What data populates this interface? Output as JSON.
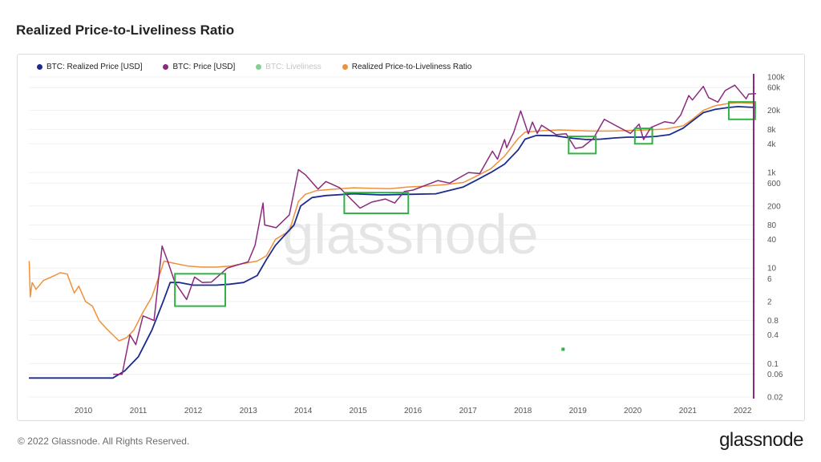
{
  "page": {
    "title": "Realized Price-to-Liveliness Ratio",
    "footer": "© 2022 Glassnode. All Rights Reserved.",
    "brand": "glassnode",
    "watermark": "glassnode"
  },
  "chart_data": {
    "type": "line",
    "title": "Realized Price-to-Liveliness Ratio",
    "xlabel": "",
    "ylabel": "",
    "y_scale": "log",
    "ylim": [
      0.02,
      100000
    ],
    "xlim": [
      "2009-01-03",
      "2022-03-31"
    ],
    "x_ticks": [
      "2010",
      "2011",
      "2012",
      "2013",
      "2014",
      "2015",
      "2016",
      "2017",
      "2018",
      "2019",
      "2020",
      "2021",
      "2022"
    ],
    "y_ticks": [
      "100k",
      "60k",
      "20k",
      "8k",
      "4k",
      "1k",
      "600",
      "200",
      "80",
      "40",
      "10",
      "6",
      "2",
      "0.8",
      "0.4",
      "0.1",
      "0.06",
      "0.02"
    ],
    "legend_position": "top-left",
    "grid": true,
    "series": [
      {
        "name": "BTC: Realized Price [USD]",
        "color": "#1c2b8e",
        "x": [
          "2009-01-03",
          "2010-07-15",
          "2010-10-01",
          "2011-01-01",
          "2011-04-01",
          "2011-06-15",
          "2011-08-01",
          "2011-10-01",
          "2012-01-01",
          "2012-06-01",
          "2012-09-01",
          "2012-12-01",
          "2013-03-01",
          "2013-05-01",
          "2013-07-01",
          "2013-11-01",
          "2013-12-15",
          "2014-03-01",
          "2014-06-01",
          "2014-12-01",
          "2015-06-01",
          "2015-12-01",
          "2016-06-01",
          "2016-12-01",
          "2017-03-01",
          "2017-06-01",
          "2017-09-01",
          "2017-12-01",
          "2018-01-15",
          "2018-04-01",
          "2018-08-01",
          "2018-12-01",
          "2019-03-01",
          "2019-06-01",
          "2019-09-01",
          "2019-12-01",
          "2020-03-01",
          "2020-06-01",
          "2020-09-01",
          "2020-12-01",
          "2021-02-01",
          "2021-04-15",
          "2021-07-01",
          "2021-10-01",
          "2021-12-01",
          "2022-02-01",
          "2022-03-31"
        ],
        "values": [
          0.05,
          0.05,
          0.07,
          0.14,
          0.5,
          2.0,
          5.0,
          5.0,
          4.4,
          4.4,
          4.6,
          5.0,
          7.0,
          15.0,
          30.0,
          80.0,
          200,
          300,
          330,
          360,
          340,
          350,
          360,
          500,
          700,
          1000,
          1500,
          3000,
          5000,
          6000,
          5900,
          5200,
          4900,
          5000,
          5300,
          5500,
          5500,
          5700,
          6200,
          8500,
          12000,
          18000,
          21000,
          23000,
          24000,
          23500,
          23000
        ]
      },
      {
        "name": "BTC: Price [USD]",
        "color": "#8b2a7e",
        "x": [
          "2010-07-18",
          "2010-09-15",
          "2010-11-06",
          "2010-12-15",
          "2011-02-01",
          "2011-04-15",
          "2011-06-08",
          "2011-07-15",
          "2011-09-01",
          "2011-11-18",
          "2012-01-10",
          "2012-03-01",
          "2012-05-01",
          "2012-08-15",
          "2012-10-15",
          "2012-12-31",
          "2013-02-15",
          "2013-04-09",
          "2013-04-20",
          "2013-07-05",
          "2013-10-01",
          "2013-11-30",
          "2014-01-15",
          "2014-04-10",
          "2014-06-01",
          "2014-09-01",
          "2015-01-14",
          "2015-04-01",
          "2015-07-01",
          "2015-09-01",
          "2015-11-04",
          "2016-01-01",
          "2016-06-15",
          "2016-09-01",
          "2017-01-04",
          "2017-03-20",
          "2017-06-12",
          "2017-07-16",
          "2017-09-01",
          "2017-09-15",
          "2017-11-01",
          "2017-12-17",
          "2018-02-06",
          "2018-03-05",
          "2018-04-06",
          "2018-05-05",
          "2018-08-10",
          "2018-10-15",
          "2018-12-15",
          "2019-02-01",
          "2019-04-15",
          "2019-06-26",
          "2019-09-01",
          "2019-12-17",
          "2020-02-12",
          "2020-03-13",
          "2020-05-01",
          "2020-08-01",
          "2020-10-01",
          "2020-11-15",
          "2021-01-08",
          "2021-02-01",
          "2021-04-14",
          "2021-05-20",
          "2021-07-20",
          "2021-09-07",
          "2021-11-10",
          "2022-01-24",
          "2022-02-10",
          "2022-03-31"
        ],
        "values": [
          0.06,
          0.06,
          0.4,
          0.25,
          1.0,
          0.8,
          29.0,
          14.0,
          5.0,
          2.2,
          6.5,
          5.0,
          5.1,
          10.0,
          11.5,
          13.5,
          30.0,
          230,
          80,
          70,
          130,
          1150,
          900,
          450,
          650,
          480,
          180,
          240,
          280,
          230,
          400,
          430,
          680,
          600,
          1000,
          950,
          2800,
          1900,
          4900,
          3300,
          7000,
          19500,
          6500,
          11400,
          6600,
          9800,
          6200,
          6500,
          3200,
          3400,
          5200,
          13000,
          10000,
          6600,
          10300,
          4900,
          8800,
          11600,
          10700,
          16000,
          41000,
          33000,
          63500,
          37000,
          29800,
          52000,
          67500,
          35000,
          44000,
          45000
        ]
      },
      {
        "name": "BTC: Liveliness",
        "color": "#2fb344",
        "x": [
          "2018-09-25"
        ],
        "values": [
          0.2
        ]
      },
      {
        "name": "Realized Price-to-Liveliness Ratio",
        "color": "#f0913a",
        "x": [
          "2009-01-05",
          "2009-01-12",
          "2009-01-25",
          "2009-02-20",
          "2009-04-10",
          "2009-06-01",
          "2009-08-01",
          "2009-09-15",
          "2009-11-01",
          "2009-12-01",
          "2010-01-15",
          "2010-03-01",
          "2010-04-15",
          "2010-06-01",
          "2010-07-15",
          "2010-08-25",
          "2010-10-15",
          "2010-12-01",
          "2011-02-01",
          "2011-04-01",
          "2011-06-01",
          "2011-06-20",
          "2011-09-01",
          "2011-12-01",
          "2012-03-01",
          "2012-06-01",
          "2012-09-01",
          "2012-12-01",
          "2013-03-01",
          "2013-05-01",
          "2013-07-01",
          "2013-10-01",
          "2013-12-01",
          "2014-01-15",
          "2014-04-01",
          "2014-08-01",
          "2014-12-01",
          "2015-04-01",
          "2015-08-01",
          "2015-12-01",
          "2016-04-01",
          "2016-08-01",
          "2016-12-01",
          "2017-03-01",
          "2017-06-01",
          "2017-09-01",
          "2017-12-01",
          "2018-01-15",
          "2018-05-01",
          "2018-09-01",
          "2018-12-15",
          "2019-04-01",
          "2019-08-01",
          "2019-12-01",
          "2020-04-01",
          "2020-08-01",
          "2020-12-01",
          "2021-02-01",
          "2021-04-15",
          "2021-07-01",
          "2021-10-01",
          "2021-12-01",
          "2022-02-01",
          "2022-03-31"
        ],
        "values": [
          14.0,
          2.5,
          5.0,
          3.6,
          5.5,
          6.5,
          8.0,
          7.5,
          3.0,
          4.2,
          2.0,
          1.6,
          0.8,
          0.55,
          0.4,
          0.3,
          0.35,
          0.5,
          1.2,
          2.5,
          9.0,
          14.0,
          12.5,
          11.0,
          10.5,
          10.5,
          11.0,
          12.5,
          14.0,
          18.0,
          40.0,
          60.0,
          250,
          350,
          420,
          450,
          480,
          470,
          460,
          500,
          520,
          560,
          620,
          850,
          1200,
          2200,
          5200,
          7000,
          7500,
          7800,
          7600,
          7400,
          7400,
          7600,
          7800,
          8100,
          9500,
          13000,
          20000,
          25000,
          28000,
          29000,
          28500,
          28000
        ]
      }
    ],
    "annotations": [
      {
        "type": "box",
        "color": "#2fb344",
        "x": [
          "2011-09-01",
          "2012-08-01"
        ],
        "y": [
          1.6,
          7.6
        ]
      },
      {
        "type": "box",
        "color": "#2fb344",
        "x": [
          "2014-10-01",
          "2015-12-01"
        ],
        "y": [
          140,
          380
        ]
      },
      {
        "type": "box",
        "color": "#2fb344",
        "x": [
          "2018-11-01",
          "2019-05-01"
        ],
        "y": [
          2500,
          5700
        ]
      },
      {
        "type": "box",
        "color": "#2fb344",
        "x": [
          "2020-01-15",
          "2020-05-10"
        ],
        "y": [
          4000,
          8400
        ]
      },
      {
        "type": "box",
        "color": "#2fb344",
        "x": [
          "2021-10-01",
          "2022-03-25"
        ],
        "y": [
          13000,
          30000
        ]
      }
    ],
    "cursor_line": {
      "x": "2022-03-15",
      "color": "#8b2a7e"
    }
  }
}
